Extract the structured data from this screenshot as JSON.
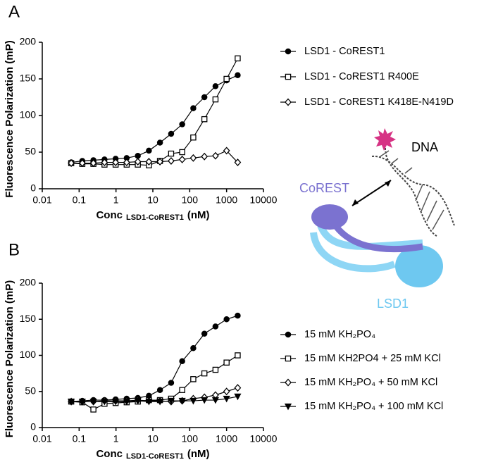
{
  "panels": [
    "A",
    "B"
  ],
  "diagram": {
    "dna": "DNA",
    "corest": "CoREST",
    "lsd1": "LSD1"
  },
  "chart_data": [
    {
      "type": "scatter",
      "ylabel": "Fluorescence Polarization (mP)",
      "xlabel": "Conc",
      "xlabel_sub": "LSD1-CoREST1",
      "xlabel_unit": "(nM)",
      "xscale": "log",
      "xlim": [
        0.01,
        10000
      ],
      "xticks": [
        0.01,
        0.1,
        1,
        10,
        100,
        1000,
        10000
      ],
      "ylim": [
        0,
        200
      ],
      "yticks": [
        0,
        50,
        100,
        150,
        200
      ],
      "x": [
        0.061,
        0.122,
        0.244,
        0.488,
        0.977,
        1.95,
        3.91,
        7.81,
        15.6,
        31.3,
        62.5,
        125,
        250,
        500,
        1000,
        2000
      ],
      "series": [
        {
          "name": "LSD1 - CoREST1",
          "color": "#000000",
          "marker": "circle",
          "filled": true,
          "values": [
            36,
            38,
            39,
            40,
            41,
            42,
            45,
            52,
            63,
            75,
            88,
            110,
            125,
            140,
            148,
            155
          ]
        },
        {
          "name": "LSD1 - CoREST1 R400E",
          "color": "#000000",
          "marker": "square",
          "filled": false,
          "values": [
            35,
            34,
            34,
            33,
            33,
            33,
            33,
            32,
            38,
            48,
            50,
            70,
            95,
            122,
            150,
            178
          ]
        },
        {
          "name": "LSD1 - CoREST1 K418E-N419D",
          "color": "#000000",
          "marker": "diamond",
          "filled": false,
          "values": [
            35,
            35,
            35,
            36,
            36,
            36,
            37,
            37,
            37,
            38,
            40,
            42,
            44,
            45,
            52,
            36
          ]
        }
      ]
    },
    {
      "type": "scatter",
      "ylabel": "Fluorescence Polarization (mP)",
      "xlabel": "Conc",
      "xlabel_sub": "LSD1-CoREST1",
      "xlabel_unit": "(nM)",
      "xscale": "log",
      "xlim": [
        0.01,
        10000
      ],
      "xticks": [
        0.01,
        0.1,
        1,
        10,
        100,
        1000,
        10000
      ],
      "ylim": [
        0,
        200
      ],
      "yticks": [
        0,
        50,
        100,
        150,
        200
      ],
      "x": [
        0.061,
        0.122,
        0.244,
        0.488,
        0.977,
        1.95,
        3.91,
        7.81,
        15.6,
        31.3,
        62.5,
        125,
        250,
        500,
        1000,
        2000
      ],
      "series": [
        {
          "name": "15 mM KH₂PO₄",
          "color": "#000000",
          "marker": "circle",
          "filled": true,
          "values": [
            36,
            37,
            38,
            38,
            39,
            40,
            41,
            44,
            52,
            62,
            92,
            110,
            130,
            140,
            150,
            155
          ]
        },
        {
          "name": "15 mM KH2PO4 + 25 mM KCl",
          "color": "#000000",
          "marker": "square",
          "filled": false,
          "values": [
            36,
            35,
            25,
            33,
            34,
            35,
            36,
            38,
            38,
            40,
            52,
            67,
            75,
            80,
            90,
            100
          ]
        },
        {
          "name": "15 mM KH₂PO₄ + 50 mM KCl",
          "color": "#000000",
          "marker": "diamond",
          "filled": false,
          "values": [
            36,
            36,
            36,
            37,
            37,
            37,
            38,
            37,
            37,
            36,
            37,
            40,
            42,
            45,
            50,
            55
          ]
        },
        {
          "name": "15 mM KH₂PO₄ + 100 mM KCl",
          "color": "#000000",
          "marker": "triangle-down",
          "filled": true,
          "values": [
            36,
            36,
            36,
            36,
            36,
            36,
            37,
            36,
            36,
            37,
            37,
            37,
            38,
            38,
            40,
            43
          ]
        }
      ]
    }
  ]
}
